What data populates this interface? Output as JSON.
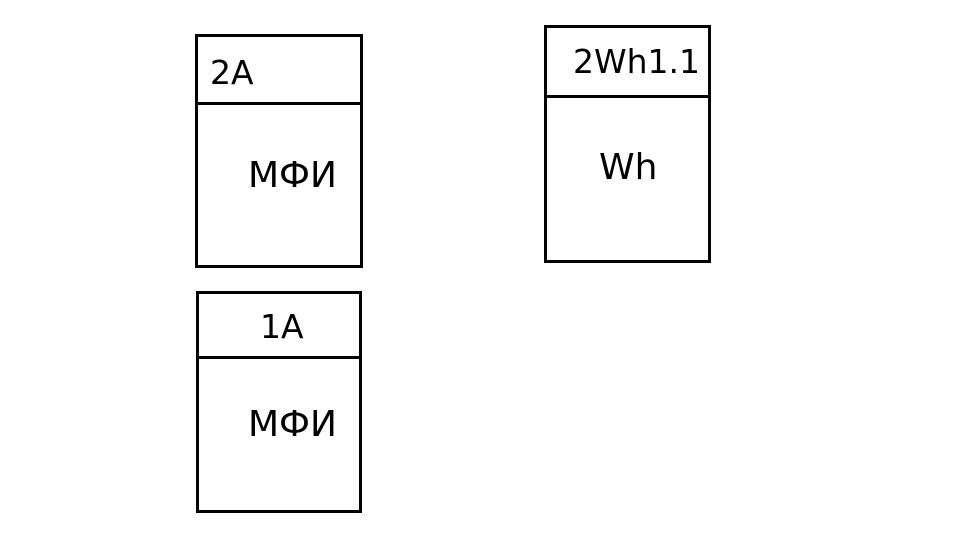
{
  "blocks": [
    {
      "tag": "2A",
      "label": "МФИ"
    },
    {
      "tag": "1A",
      "label": "МФИ"
    },
    {
      "tag": "2Wh1.1",
      "label": "Wh"
    }
  ]
}
